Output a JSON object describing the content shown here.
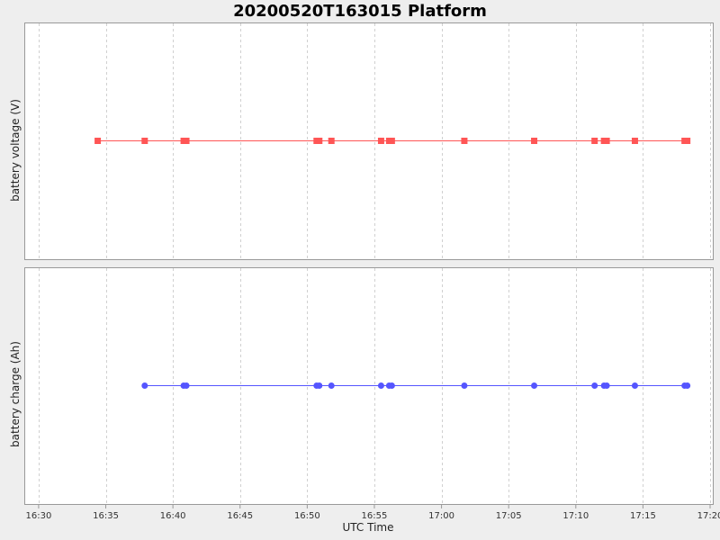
{
  "chart_data": {
    "type": "scatter",
    "title": "20200520T163015 Platform",
    "xlabel": "UTC Time",
    "x_ticks": [
      "16:30",
      "16:35",
      "16:40",
      "16:45",
      "16:50",
      "16:55",
      "17:00",
      "17:05",
      "17:10",
      "17:15",
      "17:20"
    ],
    "x_range": [
      "16:29",
      "17:20.2"
    ],
    "grid": true,
    "panels": [
      {
        "ylabel": "battery voltage (V)",
        "marker": "square",
        "color": "#ff5555",
        "series": [
          {
            "x": [
              "16:34.4",
              "16:37.9",
              "16:40.8",
              "16:41.0",
              "16:50.7",
              "16:50.9",
              "16:51.8",
              "16:55.5",
              "16:56.1",
              "16:56.3",
              "17:01.7",
              "17:06.9",
              "17:11.4",
              "17:12.1",
              "17:12.3",
              "17:14.4",
              "17:18.1",
              "17:18.3"
            ],
            "y_relative": 0.5
          }
        ]
      },
      {
        "ylabel": "battery charge (Ah)",
        "marker": "circle",
        "color": "#5555ff",
        "series": [
          {
            "x": [
              "16:37.9",
              "16:40.8",
              "16:41.0",
              "16:50.7",
              "16:50.9",
              "16:51.8",
              "16:55.5",
              "16:56.1",
              "16:56.3",
              "17:01.7",
              "17:06.9",
              "17:11.4",
              "17:12.1",
              "17:12.3",
              "17:14.4",
              "17:18.1",
              "17:18.3"
            ],
            "y_relative": 0.5
          }
        ]
      }
    ]
  }
}
